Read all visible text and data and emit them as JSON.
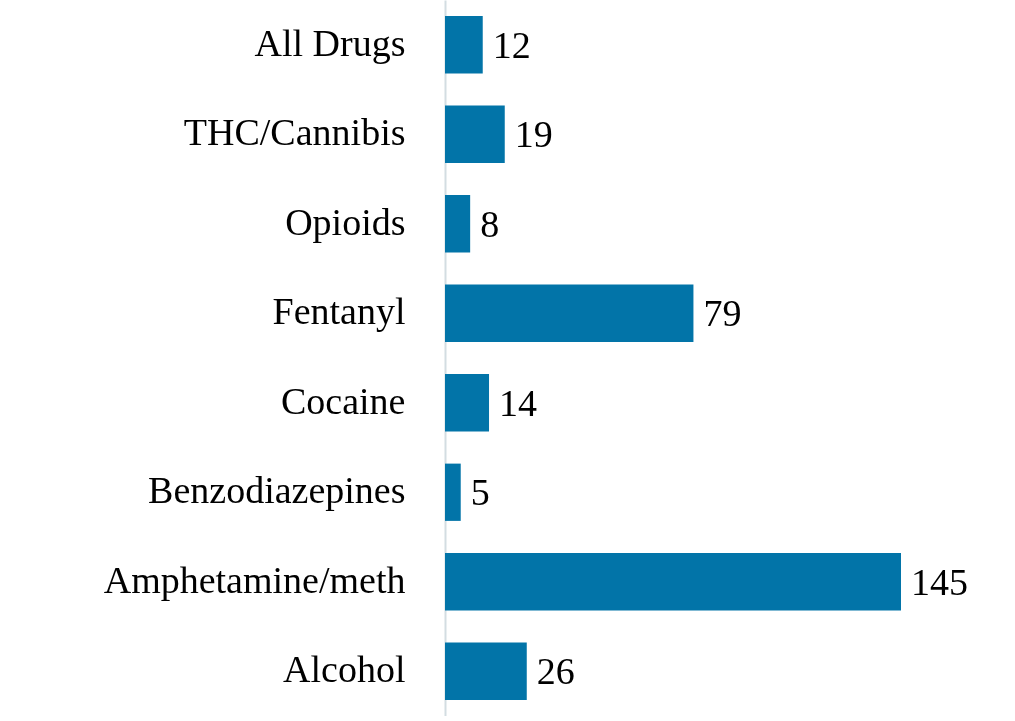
{
  "chart_data": {
    "type": "bar",
    "orientation": "horizontal",
    "categories": [
      "All Drugs",
      "THC/Cannibis",
      "Opioids",
      "Fentanyl",
      "Cocaine",
      "Benzodiazepines",
      "Amphetamine/meth",
      "Alcohol"
    ],
    "values": [
      12,
      19,
      8,
      79,
      14,
      5,
      145,
      26
    ],
    "color": "#0274a8",
    "data_labels": true
  }
}
